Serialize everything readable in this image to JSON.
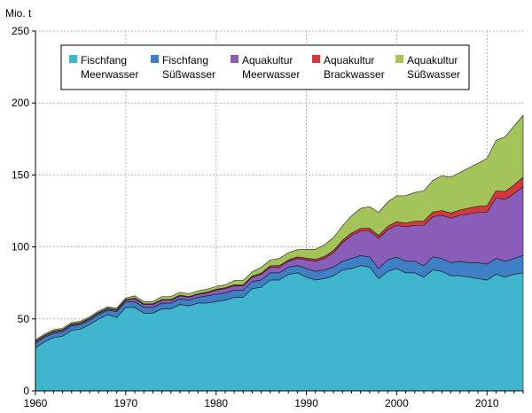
{
  "chart_data": {
    "type": "area",
    "stacked": true,
    "title": "",
    "xlabel": "",
    "ylabel": "Mio. t",
    "xlim": [
      1960,
      2014
    ],
    "ylim": [
      0,
      250
    ],
    "x_ticks": [
      1960,
      1970,
      1980,
      1990,
      2000,
      2010
    ],
    "y_ticks": [
      0,
      50,
      100,
      150,
      200,
      250
    ],
    "grid": true,
    "legend_position": "top",
    "x": [
      1960,
      1961,
      1962,
      1963,
      1964,
      1965,
      1966,
      1967,
      1968,
      1969,
      1970,
      1971,
      1972,
      1973,
      1974,
      1975,
      1976,
      1977,
      1978,
      1979,
      1980,
      1981,
      1982,
      1983,
      1984,
      1985,
      1986,
      1987,
      1988,
      1989,
      1990,
      1991,
      1992,
      1993,
      1994,
      1995,
      1996,
      1997,
      1998,
      1999,
      2000,
      2001,
      2002,
      2003,
      2004,
      2005,
      2006,
      2007,
      2008,
      2009,
      2010,
      2011,
      2012,
      2013,
      2014
    ],
    "series": [
      {
        "name": "Fischfang Meerwasser",
        "label_lines": [
          "Fischfang",
          "Meerwasser"
        ],
        "color": "#3FB6CE",
        "values": [
          30,
          34,
          37,
          38,
          42,
          43,
          46,
          50,
          53,
          51,
          58,
          58,
          54,
          54,
          57,
          57,
          60,
          59,
          61,
          61,
          62,
          63,
          65,
          65,
          71,
          72,
          77,
          77,
          81,
          82,
          79,
          77,
          78,
          80,
          84,
          85,
          87,
          86,
          78,
          83,
          85,
          82,
          82,
          79,
          84,
          83,
          80,
          80,
          79,
          78,
          77,
          81,
          79,
          81,
          82
        ]
      },
      {
        "name": "Fischfang Süßwasser",
        "label_lines": [
          "Fischfang",
          "Süßwasser"
        ],
        "color": "#3F7FC6",
        "values": [
          3,
          3,
          3,
          3,
          3,
          3,
          3,
          3,
          3,
          4,
          4,
          4,
          4,
          4,
          4,
          4,
          4,
          4,
          4,
          5,
          5,
          5,
          5,
          5,
          5,
          5,
          5,
          5,
          5,
          5,
          6,
          6,
          6,
          6,
          6,
          7,
          7,
          7,
          7,
          8,
          8,
          8,
          8,
          8,
          9,
          9,
          9,
          10,
          10,
          11,
          11,
          11,
          11,
          11,
          12
        ]
      },
      {
        "name": "Aquakultur Meerwasser",
        "label_lines": [
          "Aquakultur",
          "Meerwasser"
        ],
        "color": "#8A5DB8",
        "values": [
          1,
          1,
          1,
          1,
          1,
          1,
          1,
          1,
          1,
          1,
          1,
          2,
          2,
          2,
          2,
          2,
          2,
          2,
          2,
          2,
          3,
          3,
          3,
          3,
          3,
          4,
          4,
          4,
          4,
          5,
          6,
          7,
          8,
          10,
          13,
          16,
          17,
          18,
          21,
          21,
          22,
          24,
          25,
          28,
          28,
          30,
          31,
          32,
          34,
          35,
          36,
          42,
          43,
          45,
          48
        ]
      },
      {
        "name": "Aquakultur Brackwasser",
        "label_lines": [
          "Aquakultur",
          "Brackwasser"
        ],
        "color": "#D5393D",
        "values": [
          0.5,
          0.5,
          0.5,
          0.5,
          0.5,
          0.5,
          0.5,
          0.5,
          0.5,
          0.5,
          0.5,
          0.5,
          0.5,
          0.5,
          0.5,
          0.5,
          0.5,
          0.5,
          0.5,
          0.6,
          0.6,
          0.6,
          0.6,
          0.7,
          0.7,
          0.8,
          0.9,
          1,
          1,
          1.1,
          1.2,
          1.3,
          1.4,
          1.5,
          1.6,
          1.7,
          1.8,
          2,
          2,
          2.2,
          2.5,
          2.6,
          2.8,
          3,
          3.2,
          3.3,
          3.5,
          3.7,
          4,
          4.2,
          4.5,
          5,
          5.5,
          6,
          6.5
        ]
      },
      {
        "name": "Aquakultur Süßwasser",
        "label_lines": [
          "Aquakultur",
          "Süßwasser"
        ],
        "color": "#A4C45A",
        "values": [
          1,
          1,
          1,
          1,
          1,
          1,
          1,
          1,
          1,
          1,
          1,
          1.5,
          1.5,
          1.5,
          2,
          2,
          2,
          2,
          2,
          2,
          2,
          2,
          3,
          3,
          3,
          4,
          4,
          5,
          5,
          5,
          6,
          7,
          8,
          9,
          10,
          12,
          14,
          15,
          16,
          17,
          18,
          19,
          20,
          21,
          22,
          24,
          25,
          26,
          28,
          30,
          33,
          35,
          38,
          41,
          43
        ]
      }
    ]
  }
}
